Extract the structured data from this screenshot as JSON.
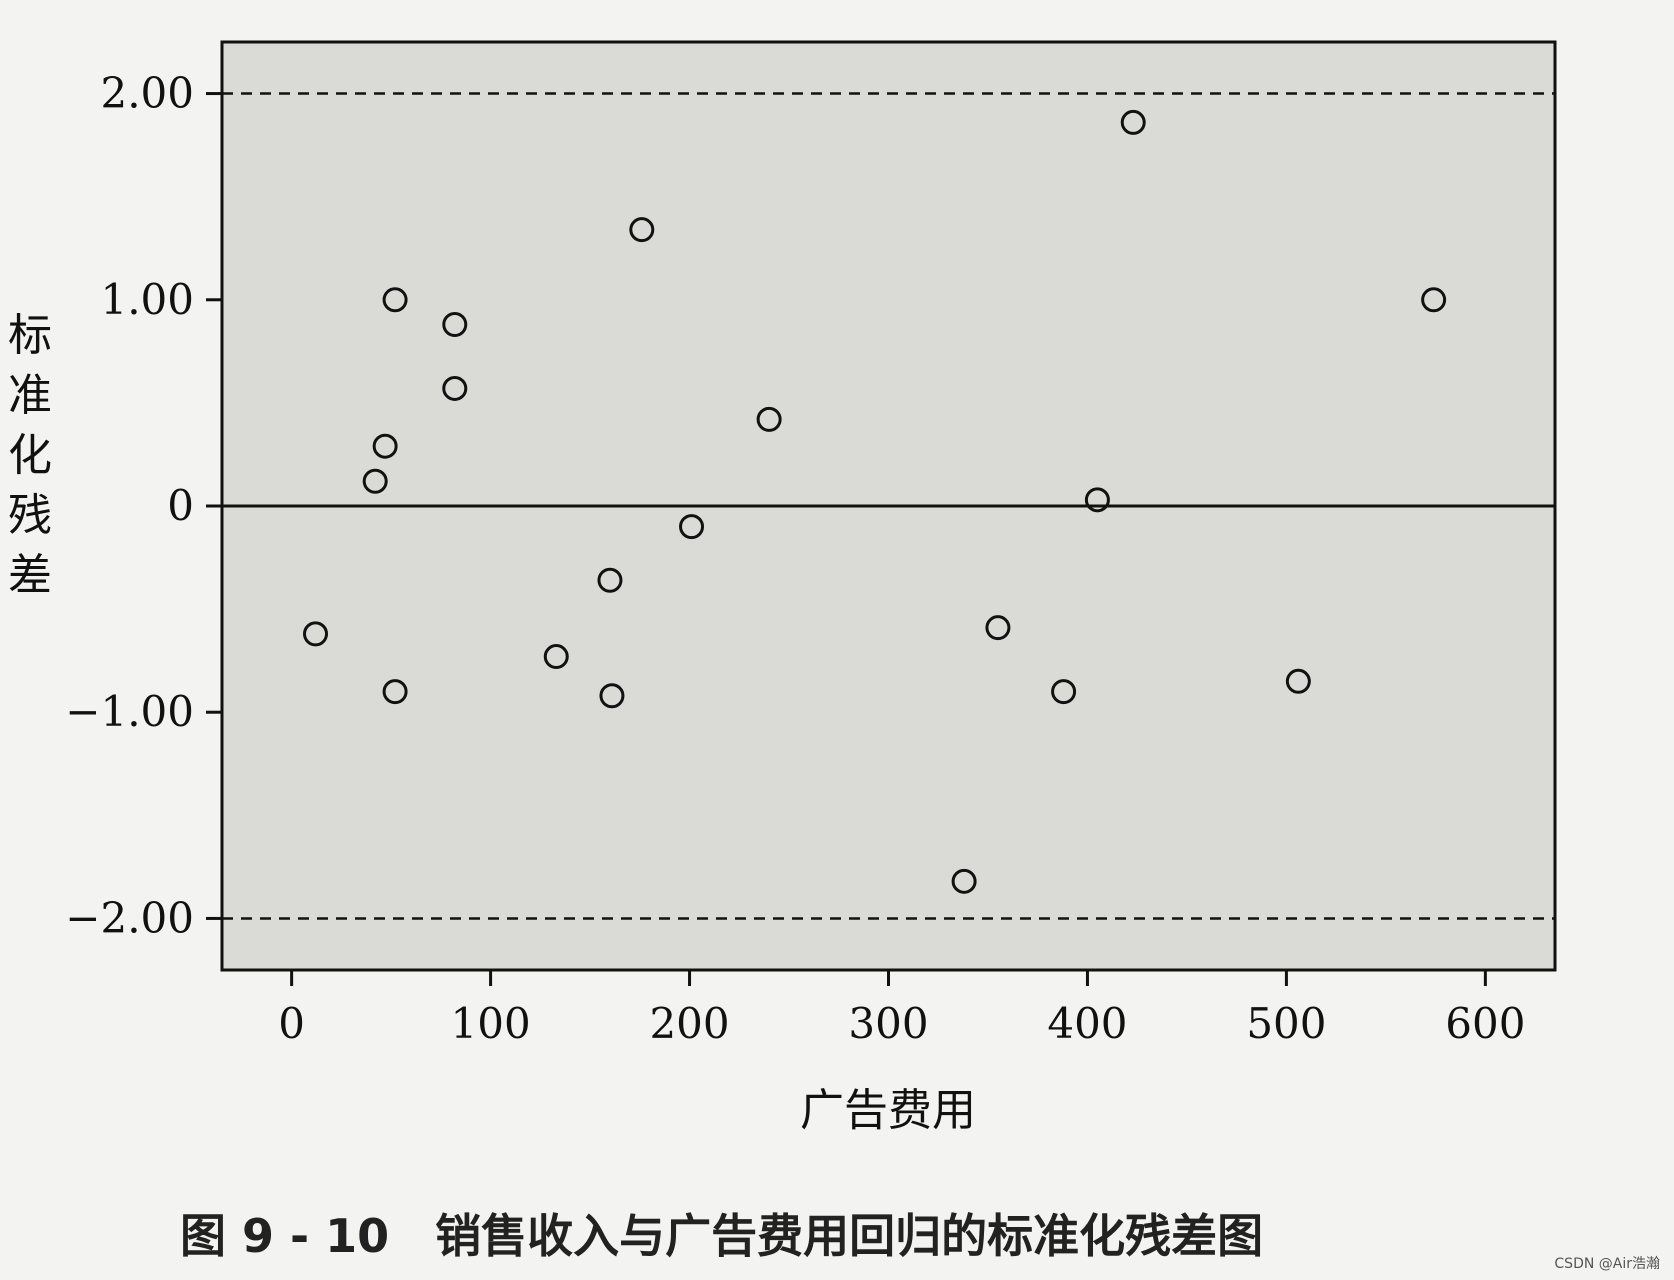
{
  "chart_data": {
    "type": "scatter",
    "title": "",
    "xlabel": "广告费用",
    "ylabel": "标准化残差",
    "xlim": [
      -35,
      635
    ],
    "ylim": [
      -2.25,
      2.25
    ],
    "x_ticks": [
      0,
      100,
      200,
      300,
      400,
      500,
      600
    ],
    "x_tick_labels": [
      "0",
      "100",
      "200",
      "300",
      "400",
      "500",
      "600"
    ],
    "y_ticks": [
      2,
      1,
      0,
      -1,
      -2
    ],
    "y_tick_labels": [
      "2.00",
      "1.00",
      "0",
      "−1.00",
      "−2.00"
    ],
    "reference_lines": [
      {
        "y": 2,
        "style": "dashed"
      },
      {
        "y": 0,
        "style": "solid"
      },
      {
        "y": -2,
        "style": "dashed"
      }
    ],
    "grid": false,
    "legend": "none",
    "points": [
      {
        "x": 12,
        "y": -0.62
      },
      {
        "x": 42,
        "y": 0.12
      },
      {
        "x": 47,
        "y": 0.29
      },
      {
        "x": 52,
        "y": 1.0
      },
      {
        "x": 52,
        "y": -0.9
      },
      {
        "x": 82,
        "y": 0.88
      },
      {
        "x": 82,
        "y": 0.57
      },
      {
        "x": 133,
        "y": -0.73
      },
      {
        "x": 160,
        "y": -0.36
      },
      {
        "x": 161,
        "y": -0.92
      },
      {
        "x": 176,
        "y": 1.34
      },
      {
        "x": 201,
        "y": -0.1
      },
      {
        "x": 240,
        "y": 0.42
      },
      {
        "x": 338,
        "y": -1.82
      },
      {
        "x": 355,
        "y": -0.59
      },
      {
        "x": 388,
        "y": -0.9
      },
      {
        "x": 405,
        "y": 0.03
      },
      {
        "x": 423,
        "y": 1.86
      },
      {
        "x": 506,
        "y": -0.85
      },
      {
        "x": 574,
        "y": 1.0
      }
    ]
  },
  "caption": {
    "text": "图 9 - 10　销售收入与广告费用回归的标准化残差图"
  },
  "watermark": {
    "text": "CSDN @Air浩瀚"
  },
  "colors": {
    "plot_background": "#dadad7",
    "page_background": "#f3f3f1",
    "ink": "#111111"
  }
}
